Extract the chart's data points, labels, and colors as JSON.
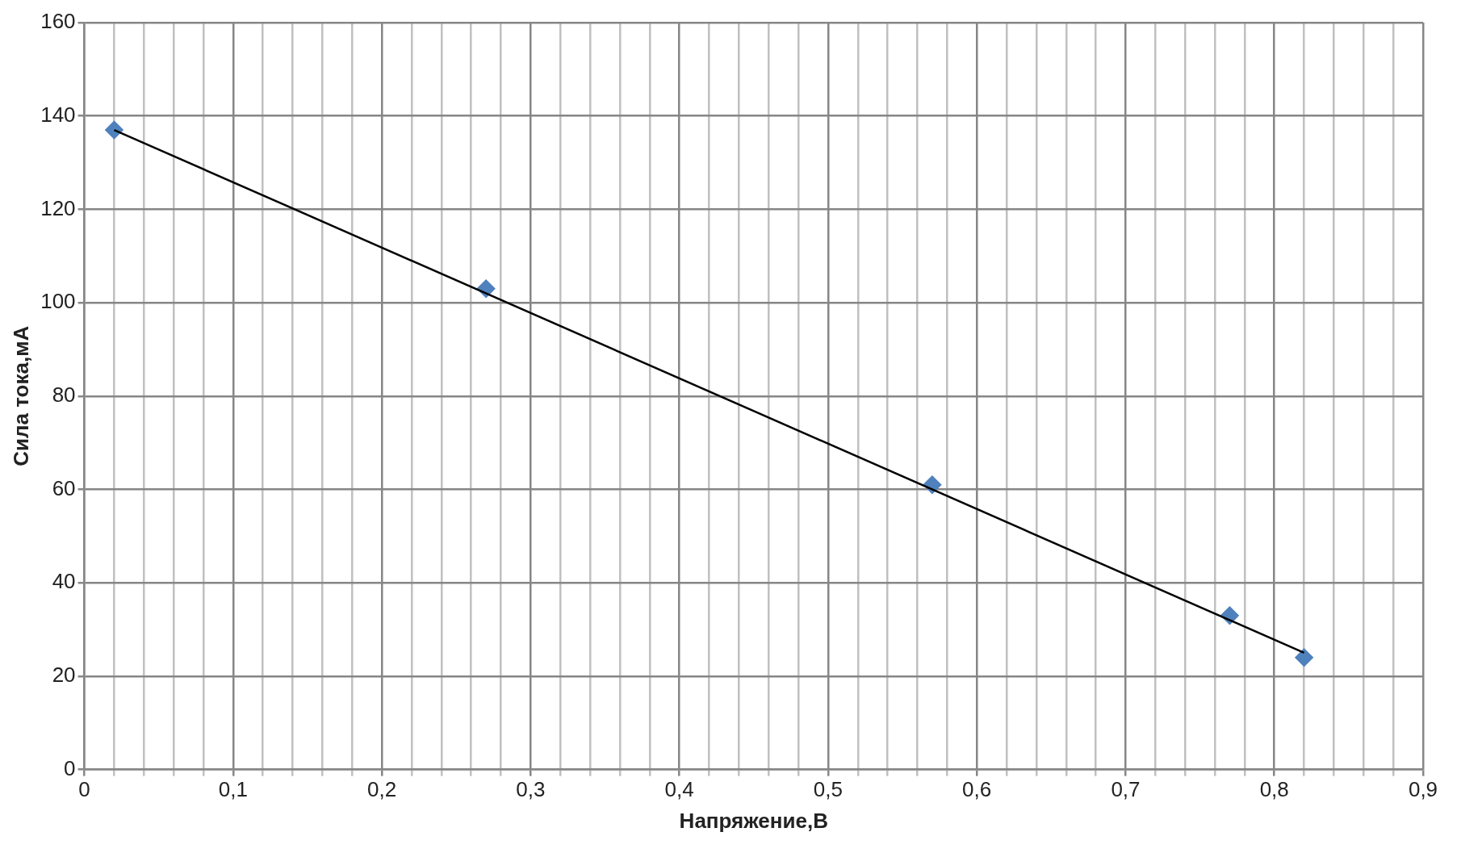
{
  "chart_data": {
    "type": "scatter",
    "xlabel": "Напряжение,В",
    "ylabel": "Сила тока,мА",
    "xlim": [
      0,
      0.9
    ],
    "ylim": [
      0,
      160
    ],
    "xticks": [
      0,
      {
        "value": 0.02,
        "label": null
      },
      {
        "value": 0.04,
        "label": null
      },
      {
        "value": 0.06,
        "label": null
      },
      {
        "value": 0.08,
        "label": null
      },
      {
        "value": 0.1,
        "label": "0,1"
      },
      {
        "value": 0.12,
        "label": null
      },
      {
        "value": 0.14,
        "label": null
      },
      {
        "value": 0.16,
        "label": null
      },
      {
        "value": 0.18,
        "label": null
      },
      {
        "value": 0.2,
        "label": "0,2"
      },
      {
        "value": 0.22,
        "label": null
      },
      {
        "value": 0.24,
        "label": null
      },
      {
        "value": 0.26,
        "label": null
      },
      {
        "value": 0.28,
        "label": null
      },
      {
        "value": 0.3,
        "label": "0,3"
      },
      {
        "value": 0.32,
        "label": null
      },
      {
        "value": 0.34,
        "label": null
      },
      {
        "value": 0.36,
        "label": null
      },
      {
        "value": 0.38,
        "label": null
      },
      {
        "value": 0.4,
        "label": "0,4"
      },
      {
        "value": 0.42,
        "label": null
      },
      {
        "value": 0.44,
        "label": null
      },
      {
        "value": 0.46,
        "label": null
      },
      {
        "value": 0.48,
        "label": null
      },
      {
        "value": 0.5,
        "label": "0,5"
      },
      {
        "value": 0.52,
        "label": null
      },
      {
        "value": 0.54,
        "label": null
      },
      {
        "value": 0.56,
        "label": null
      },
      {
        "value": 0.58,
        "label": null
      },
      {
        "value": 0.6,
        "label": "0,6"
      },
      {
        "value": 0.62,
        "label": null
      },
      {
        "value": 0.64,
        "label": null
      },
      {
        "value": 0.66,
        "label": null
      },
      {
        "value": 0.68,
        "label": null
      },
      {
        "value": 0.7,
        "label": "0,7"
      },
      {
        "value": 0.72,
        "label": null
      },
      {
        "value": 0.74,
        "label": null
      },
      {
        "value": 0.76,
        "label": null
      },
      {
        "value": 0.78,
        "label": null
      },
      {
        "value": 0.8,
        "label": "0,8"
      },
      {
        "value": 0.82,
        "label": null
      },
      {
        "value": 0.84,
        "label": null
      },
      {
        "value": 0.86,
        "label": null
      },
      {
        "value": 0.88,
        "label": null
      },
      {
        "value": 0.9,
        "label": "0,9"
      }
    ],
    "yticks": [
      0,
      20,
      40,
      60,
      80,
      100,
      120,
      140,
      160
    ],
    "grid": true,
    "legend": false,
    "series": [
      {
        "type": "scatter",
        "color": "#4f81bd",
        "marker": "diamond",
        "x": [
          0.02,
          0.27,
          0.57,
          0.77,
          0.82
        ],
        "values": [
          137,
          103,
          61,
          33,
          24
        ]
      },
      {
        "type": "line",
        "color": "#000000",
        "marker": "none",
        "line_style": "solid",
        "x": [
          0.02,
          0.82
        ],
        "values": [
          137,
          25
        ]
      }
    ]
  }
}
